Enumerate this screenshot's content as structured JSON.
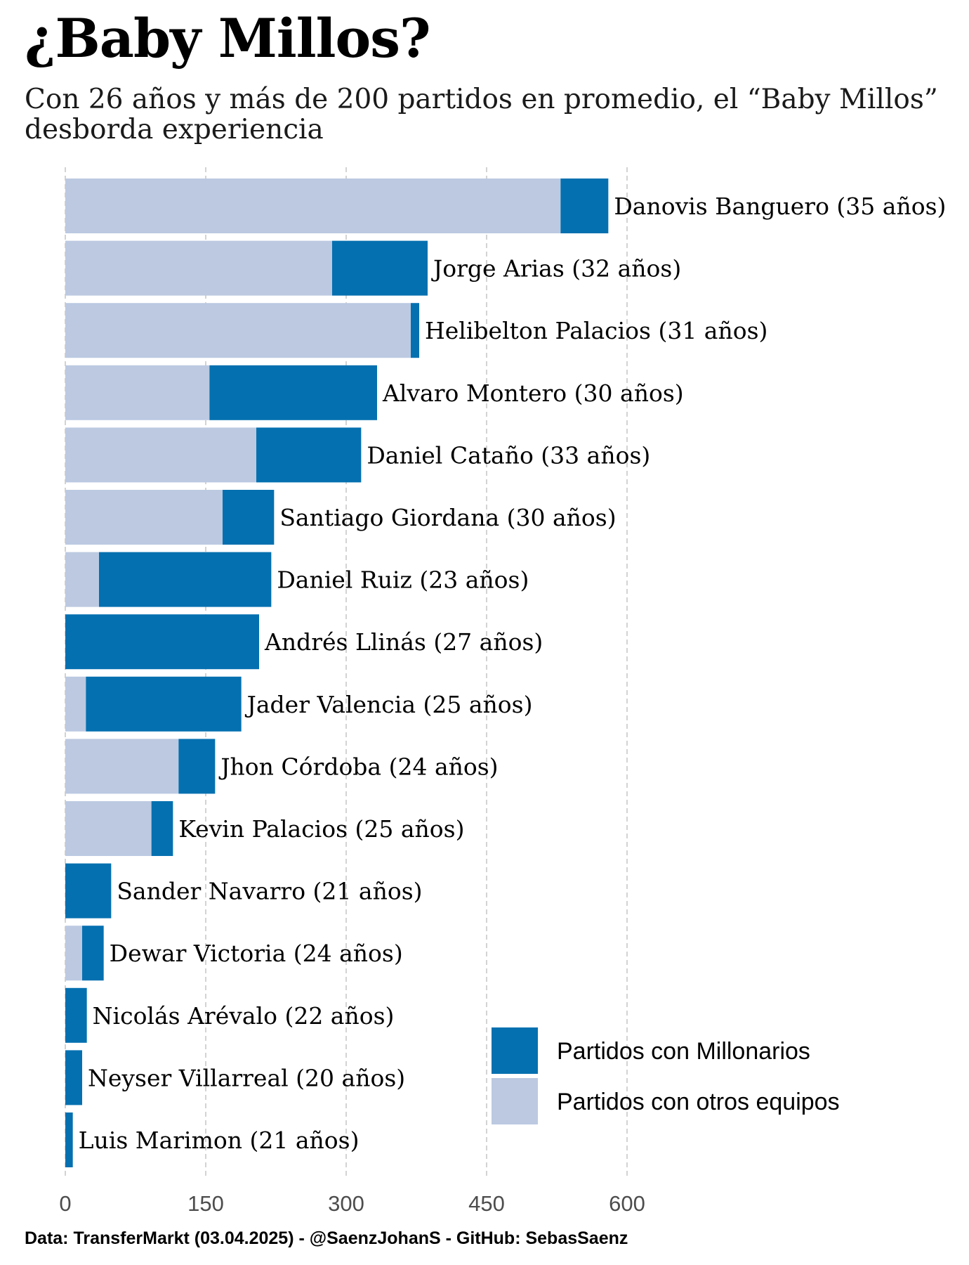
{
  "title": "¿Baby Millos?",
  "subtitle": "Con 26 años y más de 200 partidos en promedio, el “Baby Millos” desborda experiencia",
  "caption": "Data: TransferMarkt (03.04.2025) - @SaenzJohanS - GitHub: SebasSaenz",
  "colors": {
    "millonarios": "#0570b0",
    "otros": "#bcc9e1",
    "grid": "#c8c8c8",
    "axis_text": "#4d4d4d"
  },
  "chart_data": {
    "type": "bar",
    "orientation": "horizontal",
    "stacked": true,
    "categories": [
      "Danovis Banguero (35 años)",
      "Jorge Arias (32 años)",
      "Helibelton Palacios (31 años)",
      "Alvaro Montero (30 años)",
      "Daniel Cataño (33 años)",
      "Santiago Giordana (30 años)",
      "Daniel Ruiz (23 años)",
      "Andrés Llinás (27 años)",
      "Jader Valencia (25 años)",
      "Jhon Córdoba (24 años)",
      "Kevin Palacios (25 años)",
      "Sander Navarro (21 años)",
      "Dewar Victoria (24 años)",
      "Nicolás Arévalo (22 años)",
      "Neyser Villarreal (20 años)",
      "Luis Marimon (21 años)"
    ],
    "series": [
      {
        "name": "Partidos con otros equipos",
        "color": "#bcc9e1",
        "values": [
          529,
          285,
          369,
          154,
          204,
          168,
          36,
          0,
          22,
          121,
          92,
          0,
          18,
          0,
          0,
          0
        ]
      },
      {
        "name": "Partidos con Millonarios",
        "color": "#0570b0",
        "values": [
          51,
          102,
          9,
          179,
          112,
          55,
          184,
          207,
          166,
          39,
          23,
          49,
          23,
          23,
          18,
          8
        ]
      }
    ],
    "xticks": [
      0,
      150,
      300,
      450,
      600
    ],
    "xlim": [
      0,
      950
    ],
    "grid": true,
    "legend": {
      "position": "bottom-right",
      "entries": [
        "Partidos con Millonarios",
        "Partidos con otros equipos"
      ]
    }
  }
}
